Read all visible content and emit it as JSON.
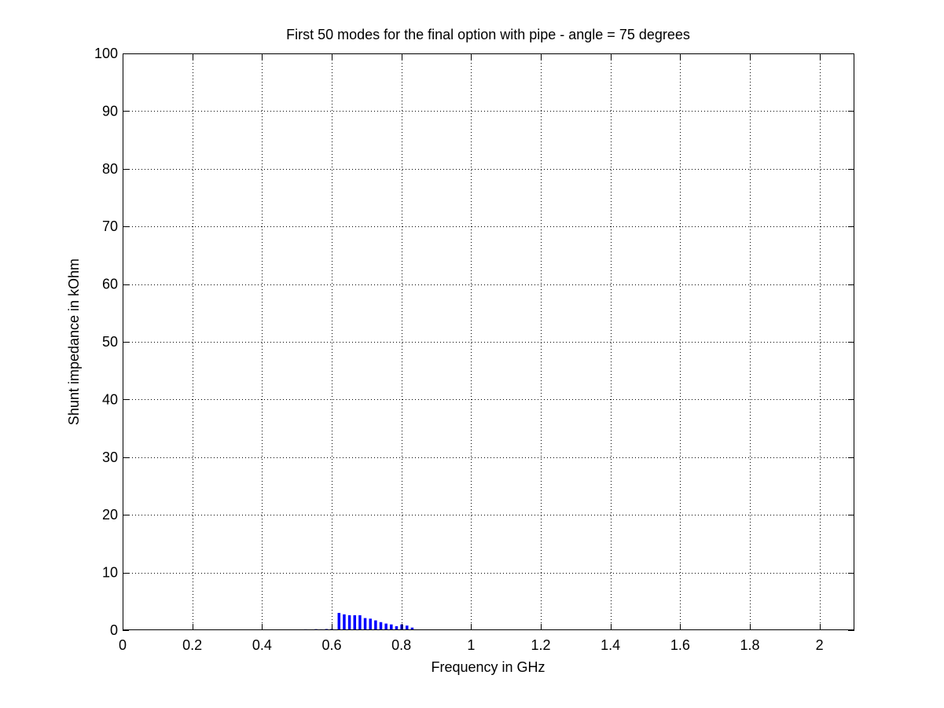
{
  "chart_data": {
    "type": "bar",
    "title": "First 50 modes for the final option with pipe - angle = 75 degrees",
    "xlabel": "Frequency in GHz",
    "ylabel": "Shunt impedance in kOhm",
    "xlim": [
      0,
      2.1
    ],
    "ylim": [
      0,
      100
    ],
    "xticks": [
      0,
      0.2,
      0.4,
      0.6,
      0.8,
      1,
      1.2,
      1.4,
      1.6,
      1.8,
      2
    ],
    "xtick_labels": [
      "0",
      "0.2",
      "0.4",
      "0.6",
      "0.8",
      "1",
      "1.2",
      "1.4",
      "1.6",
      "1.8",
      "2"
    ],
    "yticks": [
      0,
      10,
      20,
      30,
      40,
      50,
      60,
      70,
      80,
      90,
      100
    ],
    "ytick_labels": [
      "0",
      "10",
      "20",
      "30",
      "40",
      "50",
      "60",
      "70",
      "80",
      "90",
      "100"
    ],
    "grid": true,
    "bar_color": "#0000ff",
    "series": [
      {
        "x": [
          0.48,
          0.495,
          0.51,
          0.525,
          0.54,
          0.555,
          0.57,
          0.585,
          0.6,
          0.621,
          0.636,
          0.651,
          0.666,
          0.681,
          0.696,
          0.711,
          0.726,
          0.741,
          0.756,
          0.771,
          0.786,
          0.801,
          0.816,
          0.831
        ],
        "values": [
          0.1,
          0.12,
          0.1,
          0.15,
          0.12,
          0.18,
          0.15,
          0.2,
          0.22,
          3.0,
          2.75,
          2.6,
          2.6,
          2.6,
          2.1,
          2.0,
          1.7,
          1.4,
          1.15,
          1.0,
          0.7,
          1.0,
          0.8,
          0.45
        ]
      }
    ]
  }
}
